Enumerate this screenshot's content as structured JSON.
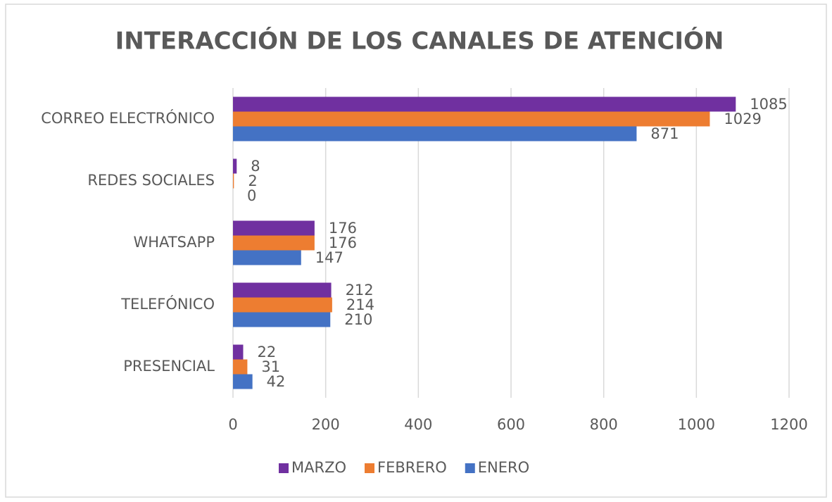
{
  "chart_data": {
    "type": "bar",
    "orientation": "horizontal",
    "title": "INTERACCIÓN DE LOS CANALES DE ATENCIÓN",
    "categories": [
      "CORREO ELECTRÓNICO",
      "REDES SOCIALES",
      "WHATSAPP",
      "TELEFÓNICO",
      "PRESENCIAL"
    ],
    "series": [
      {
        "name": "MARZO",
        "color": "#7030a0",
        "values": [
          1085,
          8,
          176,
          212,
          22
        ]
      },
      {
        "name": "FEBRERO",
        "color": "#ed7d31",
        "values": [
          1029,
          2,
          176,
          214,
          31
        ]
      },
      {
        "name": "ENERO",
        "color": "#4472c4",
        "values": [
          871,
          0,
          147,
          210,
          42
        ]
      }
    ],
    "xlim": [
      0,
      1200
    ],
    "xticks": [
      0,
      200,
      400,
      600,
      800,
      1000,
      1200
    ],
    "grid": true,
    "legend": "bottom"
  }
}
